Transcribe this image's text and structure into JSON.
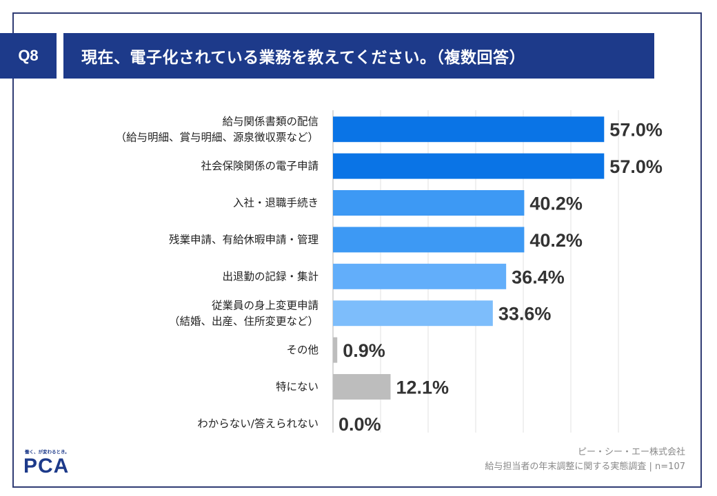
{
  "header": {
    "question_no": "Q8",
    "title": "現在、電子化されている業務を教えてください。（複数回答）"
  },
  "chart_data": {
    "type": "bar",
    "orientation": "horizontal",
    "title": "現在、電子化されている業務を教えてください。（複数回答）",
    "xlim": [
      0,
      100
    ],
    "grid": true,
    "categories": [
      [
        "給与関係書類の配信",
        "（給与明細、賞与明細、源泉徴収票など）"
      ],
      [
        "社会保険関係の電子申請"
      ],
      [
        "入社・退職手続き"
      ],
      [
        "残業申請、有給休暇申請・管理"
      ],
      [
        "出退勤の記録・集計"
      ],
      [
        "従業員の身上変更申請",
        "（結婚、出産、住所変更など）"
      ],
      [
        "その他"
      ],
      [
        "特にない"
      ],
      [
        "わからない/答えられない"
      ]
    ],
    "values": [
      57.0,
      57.0,
      40.2,
      40.2,
      36.4,
      33.6,
      0.9,
      12.1,
      0.0
    ],
    "value_labels": [
      "57.0%",
      "57.0%",
      "40.2%",
      "40.2%",
      "36.4%",
      "33.6%",
      "0.9%",
      "12.1%",
      "0.0%"
    ],
    "colors": [
      "#0a74e6",
      "#0a74e6",
      "#3d99f4",
      "#3d99f4",
      "#62aefa",
      "#7dbdfb",
      "#bdbdbd",
      "#bdbdbd",
      "#bdbdbd"
    ]
  },
  "footer": {
    "logo_tagline": "働く、が変わるとき。",
    "logo_text": "PCA",
    "source_company": "ピー・シー・エー株式会社",
    "source_survey": "給与担当者の年末調整に関する実態調査 | n=107"
  }
}
